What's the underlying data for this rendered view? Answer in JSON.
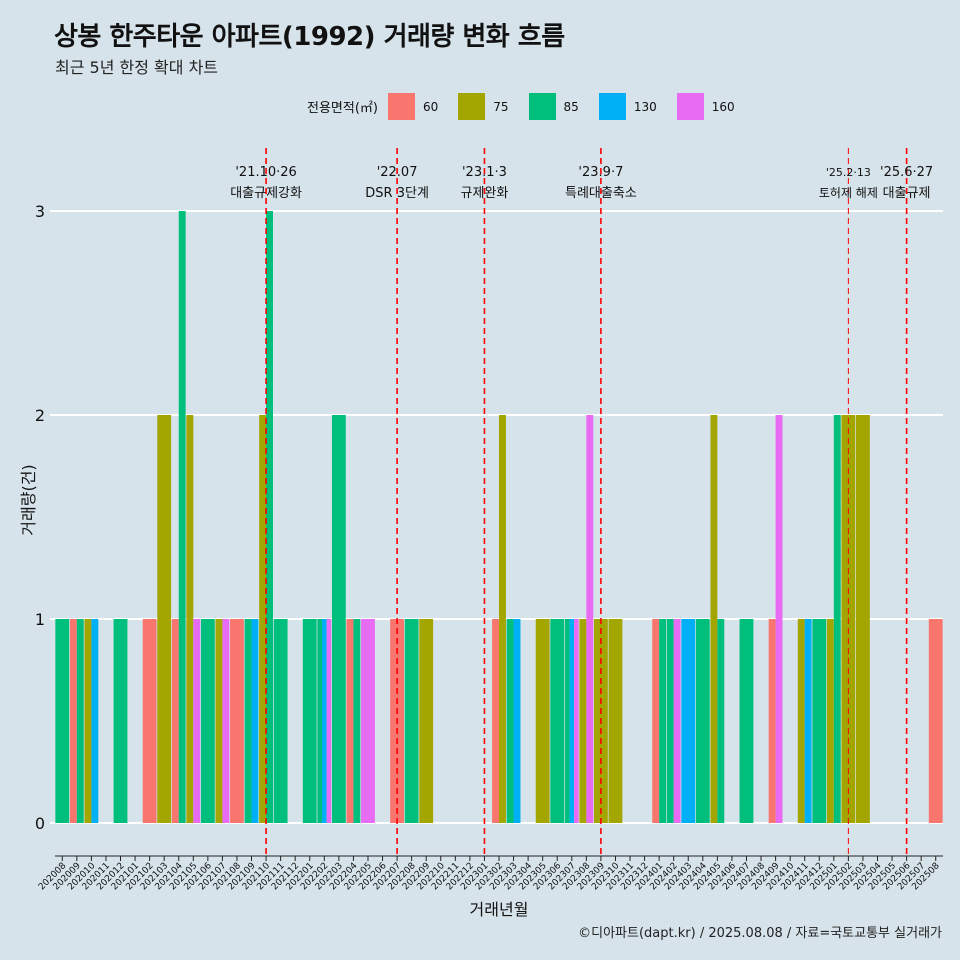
{
  "title": "상봉 한주타운 아파트(1992) 거래량 변화 흐름",
  "subtitle": "최근 5년 한정 확대 차트",
  "caption": "©디아파트(dapt.kr) / 2025.08.08 / 자료=국토교통부 실거래가",
  "legend": {
    "title": "전용면적(㎡)",
    "items": [
      {
        "label": "60",
        "color": "#f8766d"
      },
      {
        "label": "75",
        "color": "#a3a500"
      },
      {
        "label": "85",
        "color": "#00bf7d"
      },
      {
        "label": "130",
        "color": "#00b0f6"
      },
      {
        "label": "160",
        "color": "#e76bf3"
      }
    ]
  },
  "chart_data": {
    "type": "bar",
    "xlabel": "거래년월",
    "ylabel": "거래량(건)",
    "ylim": [
      0,
      3
    ],
    "yticks": [
      0,
      1,
      2,
      3
    ],
    "grid": true,
    "legend_position": "top",
    "categories": [
      "202008",
      "202009",
      "202010",
      "202011",
      "202012",
      "202101",
      "202102",
      "202103",
      "202104",
      "202105",
      "202106",
      "202107",
      "202108",
      "202109",
      "202110",
      "202111",
      "202112",
      "202201",
      "202202",
      "202203",
      "202204",
      "202205",
      "202206",
      "202207",
      "202208",
      "202209",
      "202210",
      "202211",
      "202212",
      "202301",
      "202302",
      "202303",
      "202304",
      "202305",
      "202306",
      "202307",
      "202308",
      "202309",
      "202310",
      "202311",
      "202312",
      "202401",
      "202402",
      "202403",
      "202404",
      "202405",
      "202406",
      "202407",
      "202408",
      "202409",
      "202410",
      "202411",
      "202412",
      "202501",
      "202502",
      "202503",
      "202504",
      "202505",
      "202506",
      "202507",
      "202508"
    ],
    "series": [
      {
        "name": "60",
        "color": "#f8766d",
        "values": [
          0,
          1,
          0,
          0,
          0,
          0,
          1,
          0,
          1,
          0,
          0,
          0,
          1,
          0,
          0,
          0,
          0,
          0,
          0,
          0,
          1,
          0,
          0,
          1,
          0,
          0,
          0,
          0,
          0,
          0,
          1,
          0,
          0,
          0,
          0,
          0,
          0,
          0,
          0,
          0,
          0,
          1,
          0,
          0,
          0,
          0,
          0,
          0,
          0,
          1,
          0,
          0,
          0,
          0,
          0,
          0,
          0,
          0,
          0,
          0,
          1
        ]
      },
      {
        "name": "75",
        "color": "#a3a500",
        "values": [
          0,
          0,
          1,
          0,
          0,
          0,
          0,
          2,
          0,
          2,
          0,
          1,
          0,
          0,
          2,
          0,
          0,
          0,
          0,
          0,
          0,
          0,
          0,
          0,
          0,
          1,
          0,
          0,
          0,
          0,
          2,
          0,
          0,
          1,
          0,
          0,
          1,
          1,
          1,
          0,
          0,
          0,
          0,
          0,
          0,
          2,
          0,
          0,
          0,
          0,
          0,
          1,
          0,
          1,
          2,
          2,
          0,
          0,
          0,
          0,
          0
        ]
      },
      {
        "name": "85",
        "color": "#00bf7d",
        "values": [
          1,
          1,
          0,
          0,
          1,
          0,
          0,
          0,
          3,
          0,
          1,
          0,
          0,
          1,
          3,
          1,
          0,
          1,
          1,
          2,
          1,
          0,
          0,
          0,
          1,
          0,
          0,
          0,
          0,
          0,
          0,
          1,
          0,
          0,
          1,
          1,
          0,
          0,
          0,
          0,
          0,
          1,
          1,
          0,
          1,
          1,
          0,
          1,
          0,
          0,
          0,
          0,
          1,
          2,
          0,
          0,
          0,
          0,
          0,
          0,
          0
        ]
      },
      {
        "name": "130",
        "color": "#00b0f6",
        "values": [
          0,
          0,
          1,
          0,
          0,
          0,
          0,
          0,
          0,
          0,
          0,
          0,
          0,
          1,
          0,
          0,
          0,
          0,
          1,
          0,
          0,
          0,
          0,
          0,
          0,
          0,
          0,
          0,
          0,
          0,
          0,
          1,
          0,
          0,
          0,
          1,
          0,
          0,
          0,
          0,
          0,
          0,
          0,
          1,
          0,
          0,
          0,
          0,
          0,
          0,
          0,
          1,
          0,
          0,
          0,
          0,
          0,
          0,
          0,
          0,
          0
        ]
      },
      {
        "name": "160",
        "color": "#e76bf3",
        "values": [
          0,
          0,
          0,
          0,
          0,
          0,
          0,
          0,
          0,
          1,
          0,
          1,
          0,
          0,
          0,
          0,
          0,
          0,
          1,
          0,
          0,
          1,
          0,
          0,
          0,
          0,
          0,
          0,
          0,
          0,
          0,
          0,
          0,
          0,
          0,
          1,
          2,
          0,
          0,
          0,
          0,
          0,
          1,
          0,
          0,
          0,
          0,
          0,
          0,
          2,
          0,
          0,
          0,
          0,
          0,
          0,
          0,
          0,
          0,
          0,
          0
        ]
      }
    ],
    "annotations": [
      {
        "x": "202110",
        "date": "'21.10·26",
        "label": "대출규제강화"
      },
      {
        "x": "202207",
        "date": "'22.07",
        "label": "DSR 3단계"
      },
      {
        "x": "202301",
        "date": "'23.1·3",
        "label": "규제완화"
      },
      {
        "x": "202309",
        "date": "'23.9·7",
        "label": "특례대출축소"
      },
      {
        "x": "202502",
        "date": "'25.2·13",
        "label": "토허제 해제"
      },
      {
        "x": "202506",
        "date": "'25.6·27",
        "label": "대출규제"
      }
    ]
  }
}
